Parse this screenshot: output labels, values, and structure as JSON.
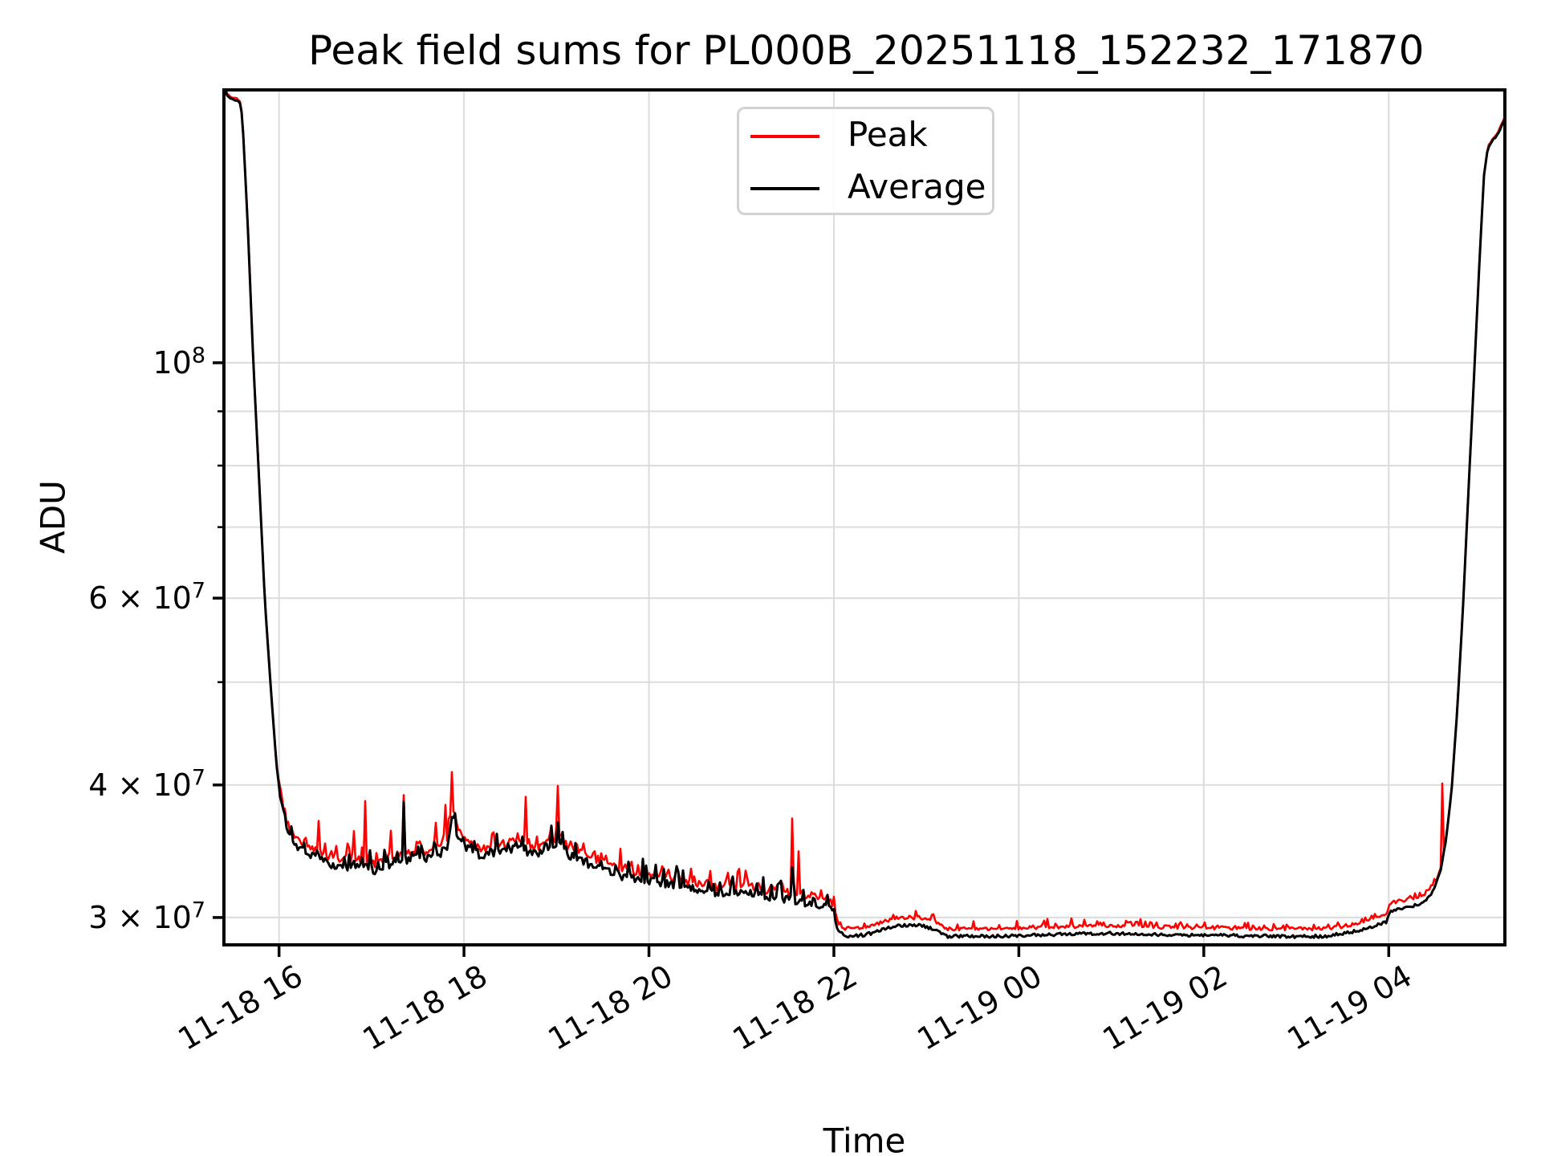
{
  "chart_data": {
    "type": "line",
    "title": "Peak field sums for PL000B_20251118_152232_171870",
    "xlabel": "Time",
    "ylabel": "ADU",
    "yscale": "log",
    "grid": "both",
    "legend_position": "upper center",
    "x_unit_note": "hours since 2025-11-18 00:00",
    "xlim": [
      15.404,
      29.256
    ],
    "ylim": [
      28270000,
      180800000
    ],
    "x_ticks": [
      {
        "hour": 16,
        "label": "11-18 16"
      },
      {
        "hour": 18,
        "label": "11-18 18"
      },
      {
        "hour": 20,
        "label": "11-18 20"
      },
      {
        "hour": 22,
        "label": "11-18 22"
      },
      {
        "hour": 24,
        "label": "11-19 00"
      },
      {
        "hour": 26,
        "label": "11-19 02"
      },
      {
        "hour": 28,
        "label": "11-19 04"
      }
    ],
    "y_ticks_major": [
      {
        "value": 100000000,
        "mantissa": "10",
        "exponent": "8"
      },
      {
        "value": 60000000,
        "mantissa": "6 × 10",
        "exponent": "7"
      },
      {
        "value": 40000000,
        "mantissa": "4 × 10",
        "exponent": "7"
      },
      {
        "value": 30000000,
        "mantissa": "3 × 10",
        "exponent": "7"
      }
    ],
    "y_ticks_minor": [
      90000000,
      80000000,
      70000000,
      50000000
    ],
    "series": [
      {
        "name": "Peak",
        "color": "#ff0000",
        "width": 2.6
      },
      {
        "name": "Average",
        "color": "#000000",
        "width": 3.0
      }
    ],
    "average_keypoints": [
      [
        15.404,
        183000000.0
      ],
      [
        15.43,
        179000000.0
      ],
      [
        15.47,
        177500000.0
      ],
      [
        15.555,
        176500000.0
      ],
      [
        15.585,
        175500000.0
      ],
      [
        15.605,
        169000000.0
      ],
      [
        15.66,
        136000000.0
      ],
      [
        15.72,
        101000000.0
      ],
      [
        15.78,
        79000000.0
      ],
      [
        15.845,
        60000000.0
      ],
      [
        15.91,
        49500000.0
      ],
      [
        15.97,
        42000000.0
      ],
      [
        16.02,
        38600000.0
      ],
      [
        16.08,
        36400000.0
      ],
      [
        16.16,
        35200000.0
      ],
      [
        16.27,
        34600000.0
      ],
      [
        16.4,
        34200000.0
      ],
      [
        16.55,
        33600000.0
      ],
      [
        16.68,
        33300000.0
      ],
      [
        16.8,
        33700000.0
      ],
      [
        16.92,
        33500000.0
      ],
      [
        17.05,
        33200000.0
      ],
      [
        17.2,
        33600000.0
      ],
      [
        17.3,
        33900000.0
      ],
      [
        17.42,
        34000000.0
      ],
      [
        17.55,
        34100000.0
      ],
      [
        17.7,
        34200000.0
      ],
      [
        17.82,
        35000000.0
      ],
      [
        17.87,
        37600000.0
      ],
      [
        17.93,
        35800000.0
      ],
      [
        18.0,
        35000000.0
      ],
      [
        18.1,
        34500000.0
      ],
      [
        18.22,
        34200000.0
      ],
      [
        18.35,
        34600000.0
      ],
      [
        18.5,
        34800000.0
      ],
      [
        18.65,
        34700000.0
      ],
      [
        18.8,
        34400000.0
      ],
      [
        18.98,
        34900000.0
      ],
      [
        19.03,
        35400000.0
      ],
      [
        19.12,
        34400000.0
      ],
      [
        19.25,
        34000000.0
      ],
      [
        19.4,
        33500000.0
      ],
      [
        19.55,
        33200000.0
      ],
      [
        19.7,
        32800000.0
      ],
      [
        19.9,
        32600000.0
      ],
      [
        20.1,
        32400000.0
      ],
      [
        20.35,
        32100000.0
      ],
      [
        20.6,
        31700000.0
      ],
      [
        20.85,
        31500000.0
      ],
      [
        21.0,
        31700000.0
      ],
      [
        21.15,
        31500000.0
      ],
      [
        21.4,
        31300000.0
      ],
      [
        21.7,
        31000000.0
      ],
      [
        21.95,
        30700000.0
      ],
      [
        22.0,
        30500000.0
      ],
      [
        22.04,
        29200000.0
      ],
      [
        22.12,
        28800000.0
      ],
      [
        22.35,
        28900000.0
      ],
      [
        22.55,
        29300000.0
      ],
      [
        22.75,
        29500000.0
      ],
      [
        22.95,
        29500000.0
      ],
      [
        23.1,
        29200000.0
      ],
      [
        23.22,
        28800000.0
      ],
      [
        23.6,
        28800000.0
      ],
      [
        24.0,
        28850000.0
      ],
      [
        24.5,
        28950000.0
      ],
      [
        25.0,
        29000000.0
      ],
      [
        25.6,
        28900000.0
      ],
      [
        26.2,
        28850000.0
      ],
      [
        26.8,
        28800000.0
      ],
      [
        27.3,
        28800000.0
      ],
      [
        27.55,
        29000000.0
      ],
      [
        27.8,
        29400000.0
      ],
      [
        27.97,
        29700000.0
      ],
      [
        28.01,
        30400000.0
      ],
      [
        28.1,
        30600000.0
      ],
      [
        28.25,
        30700000.0
      ],
      [
        28.38,
        31000000.0
      ],
      [
        28.48,
        31800000.0
      ],
      [
        28.56,
        33200000.0
      ],
      [
        28.62,
        35500000.0
      ],
      [
        28.68,
        39500000.0
      ],
      [
        28.74,
        47000000.0
      ],
      [
        28.8,
        58000000.0
      ],
      [
        28.86,
        75000000.0
      ],
      [
        28.92,
        96000000.0
      ],
      [
        28.98,
        124000000.0
      ],
      [
        29.03,
        150000000.0
      ],
      [
        29.07,
        159000000.0
      ],
      [
        29.12,
        162000000.0
      ],
      [
        29.18,
        164000000.0
      ],
      [
        29.256,
        170000000.0
      ]
    ],
    "peak_spikes": [
      [
        16.43,
        38000000.0
      ],
      [
        16.49,
        39500000.0
      ],
      [
        16.57,
        36200000.0
      ],
      [
        16.63,
        37200000.0
      ],
      [
        16.72,
        35500000.0
      ],
      [
        16.81,
        36200000.0
      ],
      [
        16.93,
        39500000.0
      ],
      [
        17.06,
        36200000.0
      ],
      [
        17.16,
        35800000.0
      ],
      [
        17.21,
        36600000.0
      ],
      [
        17.35,
        40200000.0
      ],
      [
        17.46,
        37000000.0
      ],
      [
        17.58,
        37400000.0
      ],
      [
        17.7,
        39500000.0
      ],
      [
        17.8,
        38600000.0
      ],
      [
        17.87,
        41800000.0
      ],
      [
        18.0,
        37200000.0
      ],
      [
        18.08,
        36500000.0
      ],
      [
        18.19,
        37600000.0
      ],
      [
        18.32,
        36200000.0
      ],
      [
        18.43,
        38600000.0
      ],
      [
        18.54,
        37000000.0
      ],
      [
        18.67,
        40500000.0
      ],
      [
        18.78,
        37200000.0
      ],
      [
        18.89,
        36600000.0
      ],
      [
        19.02,
        43300000.0
      ],
      [
        19.15,
        37200000.0
      ],
      [
        19.25,
        36200000.0
      ],
      [
        19.39,
        38000000.0
      ],
      [
        19.49,
        37600000.0
      ],
      [
        19.69,
        35600000.0
      ],
      [
        19.84,
        35000000.0
      ],
      [
        20.03,
        34600000.0
      ],
      [
        20.21,
        34400000.0
      ],
      [
        20.39,
        34000000.0
      ],
      [
        20.55,
        34400000.0
      ],
      [
        20.88,
        35700000.0
      ],
      [
        21.05,
        35500000.0
      ],
      [
        21.35,
        34800000.0
      ],
      [
        21.55,
        37800000.0
      ],
      [
        21.62,
        35500000.0
      ],
      [
        21.85,
        33500000.0
      ],
      [
        23.13,
        29900000.0
      ],
      [
        24.0,
        30500000.0
      ],
      [
        27.02,
        30000000.0
      ],
      [
        27.76,
        30300000.0
      ],
      [
        28.58,
        40700000.0
      ]
    ],
    "average_spikes": [
      [
        17.35,
        39600000.0
      ],
      [
        17.7,
        36000000.0
      ],
      [
        18.43,
        35600000.0
      ],
      [
        18.67,
        35800000.0
      ],
      [
        19.02,
        36200000.0
      ],
      [
        21.55,
        34000000.0
      ]
    ],
    "render_hints": {
      "seed": 1337,
      "busy_start_hour": 16.0,
      "busy_end_hour": 22.02,
      "ascent_start_hour": 28.5,
      "noise_busy": 0.009,
      "noise_flat": 0.0035,
      "noise_edges": 0.0015,
      "peak_offset_busy": 0.015,
      "peak_offset_flat": 0.016,
      "peak_offset_edges": 0.004,
      "grid_color": "#dcdcdc",
      "spine_color": "#000000",
      "background": "#ffffff"
    }
  }
}
